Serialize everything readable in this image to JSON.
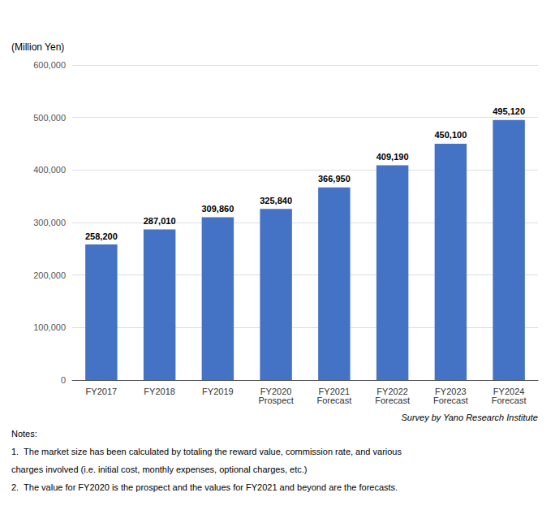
{
  "chart_data": {
    "type": "bar",
    "ylabel": "(Million Yen)",
    "categories": [
      "FY2017",
      "FY2018",
      "FY2019",
      "FY2020\nProspect",
      "FY2021\nForecast",
      "FY2022\nForecast",
      "FY2023\nForecast",
      "FY2024\nForecast"
    ],
    "values": [
      258200,
      287010,
      309860,
      325840,
      366950,
      409190,
      450100,
      495120
    ],
    "value_labels": [
      "258,200",
      "287,010",
      "309,860",
      "325,840",
      "366,950",
      "409,190",
      "450,100",
      "495,120"
    ],
    "data_labels": true,
    "color": "#4472C4",
    "ylim": [
      0,
      600000
    ],
    "yticks": [
      0,
      {
        "value": 100000,
        "label": "100,000"
      },
      {
        "value": 200000,
        "label": "200,000"
      },
      {
        "value": 300000,
        "label": "300,000"
      },
      {
        "value": 400000,
        "label": "400,000"
      },
      {
        "value": 500000,
        "label": "500,000"
      },
      {
        "value": 600000,
        "label": "600,000"
      }
    ],
    "grid": true,
    "source": "Survey by Yano Research Institute",
    "notes": [
      "Notes:",
      "1.  The market size has been calculated by totaling the reward value, commission rate, and various",
      "charges involved (i.e. initial cost, monthly expenses, optional charges, etc.)",
      "2.  The value for FY2020 is the prospect and the values for FY2021 and beyond are the forecasts."
    ]
  }
}
